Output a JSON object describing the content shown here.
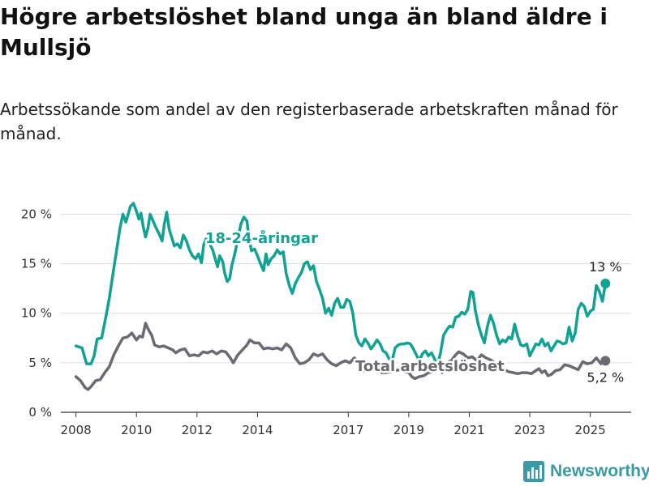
{
  "title": "Högre arbetslöshet bland unga än bland äldre i Mullsjö",
  "subtitle": "Arbetssökande som andel av den registerbaserade arbetskraften månad för månad.",
  "brand": {
    "name": "Newsworthy",
    "icon": "bar-chart-logo-icon",
    "color": "#3a9aa5"
  },
  "chart_data": {
    "type": "line",
    "x_ticks": [
      "2008",
      "2010",
      "2012",
      "2014",
      "2017",
      "2019",
      "2021",
      "2023",
      "2025"
    ],
    "y_ticks": [
      "0 %",
      "5 %",
      "10 %",
      "15 %",
      "20 %"
    ],
    "ylim": [
      0,
      22
    ],
    "grid": true,
    "legend": "direct labels on lines",
    "series": [
      {
        "name": "18-24-åringar",
        "color": "#11a294",
        "end_label": "13 %",
        "points": [
          [
            2008.0,
            6.7
          ],
          [
            2008.2,
            6.5
          ],
          [
            2008.35,
            4.9
          ],
          [
            2008.5,
            4.9
          ],
          [
            2008.6,
            5.7
          ],
          [
            2008.7,
            7.4
          ],
          [
            2008.85,
            7.5
          ],
          [
            2009.0,
            9.8
          ],
          [
            2009.1,
            11.5
          ],
          [
            2009.2,
            13.5
          ],
          [
            2009.3,
            15.5
          ],
          [
            2009.45,
            18.5
          ],
          [
            2009.55,
            20.0
          ],
          [
            2009.65,
            19.2
          ],
          [
            2009.8,
            20.8
          ],
          [
            2009.9,
            21.1
          ],
          [
            2010.0,
            20.3
          ],
          [
            2010.08,
            19.5
          ],
          [
            2010.15,
            20.1
          ],
          [
            2010.22,
            18.8
          ],
          [
            2010.3,
            17.7
          ],
          [
            2010.38,
            18.6
          ],
          [
            2010.45,
            20.0
          ],
          [
            2010.55,
            19.3
          ],
          [
            2010.65,
            18.6
          ],
          [
            2010.75,
            18.0
          ],
          [
            2010.85,
            17.3
          ],
          [
            2010.92,
            19.0
          ],
          [
            2011.0,
            20.2
          ],
          [
            2011.08,
            18.5
          ],
          [
            2011.15,
            17.8
          ],
          [
            2011.25,
            16.8
          ],
          [
            2011.35,
            17.0
          ],
          [
            2011.45,
            16.6
          ],
          [
            2011.55,
            17.9
          ],
          [
            2011.65,
            17.3
          ],
          [
            2011.75,
            16.4
          ],
          [
            2011.85,
            15.8
          ],
          [
            2011.95,
            15.5
          ],
          [
            2012.05,
            16.0
          ],
          [
            2012.15,
            15.1
          ],
          [
            2012.22,
            16.9
          ],
          [
            2012.3,
            17.5
          ],
          [
            2012.42,
            17.0
          ],
          [
            2012.52,
            16.4
          ],
          [
            2012.6,
            15.5
          ],
          [
            2012.68,
            14.7
          ],
          [
            2012.75,
            15.8
          ],
          [
            2012.85,
            15.2
          ],
          [
            2012.92,
            14.0
          ],
          [
            2013.0,
            13.2
          ],
          [
            2013.08,
            13.5
          ],
          [
            2013.15,
            14.8
          ],
          [
            2013.25,
            16.0
          ],
          [
            2013.35,
            17.5
          ],
          [
            2013.45,
            19.0
          ],
          [
            2013.55,
            19.7
          ],
          [
            2013.65,
            19.3
          ],
          [
            2013.72,
            17.5
          ],
          [
            2013.8,
            16.3
          ],
          [
            2013.9,
            16.5
          ],
          [
            2014.0,
            15.8
          ],
          [
            2014.1,
            15.0
          ],
          [
            2014.2,
            14.3
          ],
          [
            2014.28,
            16.0
          ],
          [
            2014.35,
            14.9
          ],
          [
            2014.45,
            15.5
          ],
          [
            2014.55,
            15.8
          ],
          [
            2014.65,
            16.4
          ],
          [
            2014.75,
            16.0
          ],
          [
            2014.85,
            16.2
          ],
          [
            2014.95,
            14.0
          ],
          [
            2015.05,
            12.8
          ],
          [
            2015.15,
            12.0
          ],
          [
            2015.25,
            13.0
          ],
          [
            2015.35,
            13.6
          ],
          [
            2015.45,
            14.1
          ],
          [
            2015.55,
            15.0
          ],
          [
            2015.65,
            15.2
          ],
          [
            2015.75,
            14.4
          ],
          [
            2015.85,
            14.8
          ],
          [
            2015.95,
            13.2
          ],
          [
            2016.05,
            12.4
          ],
          [
            2016.15,
            11.5
          ],
          [
            2016.25,
            10.0
          ],
          [
            2016.35,
            10.5
          ],
          [
            2016.45,
            9.8
          ],
          [
            2016.55,
            11.0
          ],
          [
            2016.65,
            11.5
          ],
          [
            2016.75,
            10.6
          ],
          [
            2016.85,
            10.6
          ],
          [
            2016.95,
            11.4
          ],
          [
            2017.05,
            11.2
          ],
          [
            2017.15,
            10.0
          ],
          [
            2017.25,
            7.8
          ],
          [
            2017.35,
            7.0
          ],
          [
            2017.45,
            6.7
          ],
          [
            2017.55,
            7.4
          ],
          [
            2017.65,
            7.0
          ],
          [
            2017.75,
            6.4
          ],
          [
            2017.85,
            6.8
          ],
          [
            2017.95,
            7.3
          ],
          [
            2018.05,
            6.9
          ],
          [
            2018.15,
            6.2
          ],
          [
            2018.25,
            6.0
          ],
          [
            2018.35,
            5.4
          ],
          [
            2018.45,
            5.2
          ],
          [
            2018.55,
            6.5
          ],
          [
            2018.65,
            6.8
          ],
          [
            2018.75,
            6.9
          ],
          [
            2018.85,
            6.9
          ],
          [
            2018.95,
            7.0
          ],
          [
            2019.05,
            6.9
          ],
          [
            2019.15,
            6.4
          ],
          [
            2019.25,
            5.8
          ],
          [
            2019.35,
            5.2
          ],
          [
            2019.45,
            5.9
          ],
          [
            2019.55,
            6.2
          ],
          [
            2019.65,
            5.7
          ],
          [
            2019.75,
            6.0
          ],
          [
            2019.85,
            5.4
          ],
          [
            2019.95,
            4.7
          ],
          [
            2020.05,
            6.0
          ],
          [
            2020.15,
            7.8
          ],
          [
            2020.25,
            8.3
          ],
          [
            2020.35,
            8.7
          ],
          [
            2020.45,
            8.6
          ],
          [
            2020.55,
            9.6
          ],
          [
            2020.65,
            9.7
          ],
          [
            2020.75,
            10.1
          ],
          [
            2020.85,
            9.9
          ],
          [
            2020.95,
            10.4
          ],
          [
            2021.05,
            12.2
          ],
          [
            2021.12,
            12.1
          ],
          [
            2021.2,
            10.3
          ],
          [
            2021.3,
            8.8
          ],
          [
            2021.4,
            7.8
          ],
          [
            2021.5,
            7.0
          ],
          [
            2021.6,
            8.7
          ],
          [
            2021.7,
            9.8
          ],
          [
            2021.8,
            9.0
          ],
          [
            2021.9,
            7.8
          ],
          [
            2022.0,
            6.9
          ],
          [
            2022.1,
            7.3
          ],
          [
            2022.2,
            7.1
          ],
          [
            2022.3,
            7.6
          ],
          [
            2022.4,
            7.4
          ],
          [
            2022.5,
            8.9
          ],
          [
            2022.6,
            7.7
          ],
          [
            2022.7,
            6.8
          ],
          [
            2022.8,
            6.7
          ],
          [
            2022.9,
            6.9
          ],
          [
            2023.0,
            5.7
          ],
          [
            2023.1,
            6.3
          ],
          [
            2023.2,
            6.9
          ],
          [
            2023.3,
            6.8
          ],
          [
            2023.4,
            7.4
          ],
          [
            2023.5,
            6.7
          ],
          [
            2023.6,
            7.0
          ],
          [
            2023.7,
            6.2
          ],
          [
            2023.8,
            6.7
          ],
          [
            2023.9,
            7.2
          ],
          [
            2024.0,
            7.1
          ],
          [
            2024.1,
            6.9
          ],
          [
            2024.2,
            7.0
          ],
          [
            2024.3,
            8.6
          ],
          [
            2024.4,
            7.2
          ],
          [
            2024.5,
            8.0
          ],
          [
            2024.6,
            10.4
          ],
          [
            2024.7,
            11.0
          ],
          [
            2024.8,
            10.7
          ],
          [
            2024.9,
            9.7
          ],
          [
            2025.0,
            10.2
          ],
          [
            2025.1,
            10.4
          ],
          [
            2025.2,
            12.8
          ],
          [
            2025.3,
            12.2
          ],
          [
            2025.4,
            11.2
          ],
          [
            2025.5,
            13.0
          ]
        ]
      },
      {
        "name": "Total arbetslöshet",
        "color": "#6b6a72",
        "end_label": "5,2 %",
        "points": [
          [
            2008.0,
            3.6
          ],
          [
            2008.15,
            3.2
          ],
          [
            2008.3,
            2.5
          ],
          [
            2008.4,
            2.3
          ],
          [
            2008.5,
            2.6
          ],
          [
            2008.65,
            3.2
          ],
          [
            2008.8,
            3.3
          ],
          [
            2008.95,
            4.0
          ],
          [
            2009.1,
            4.6
          ],
          [
            2009.25,
            5.8
          ],
          [
            2009.4,
            6.7
          ],
          [
            2009.55,
            7.5
          ],
          [
            2009.7,
            7.6
          ],
          [
            2009.85,
            8.0
          ],
          [
            2010.0,
            7.3
          ],
          [
            2010.1,
            7.7
          ],
          [
            2010.2,
            7.6
          ],
          [
            2010.3,
            9.0
          ],
          [
            2010.4,
            8.3
          ],
          [
            2010.5,
            7.8
          ],
          [
            2010.6,
            6.8
          ],
          [
            2010.75,
            6.6
          ],
          [
            2010.9,
            6.7
          ],
          [
            2011.05,
            6.5
          ],
          [
            2011.2,
            6.3
          ],
          [
            2011.3,
            6.0
          ],
          [
            2011.45,
            6.3
          ],
          [
            2011.6,
            6.4
          ],
          [
            2011.75,
            5.7
          ],
          [
            2011.9,
            5.8
          ],
          [
            2012.05,
            5.7
          ],
          [
            2012.2,
            6.1
          ],
          [
            2012.35,
            6.0
          ],
          [
            2012.5,
            6.2
          ],
          [
            2012.65,
            5.9
          ],
          [
            2012.8,
            6.2
          ],
          [
            2012.95,
            6.1
          ],
          [
            2013.1,
            5.5
          ],
          [
            2013.2,
            5.0
          ],
          [
            2013.35,
            5.8
          ],
          [
            2013.5,
            6.3
          ],
          [
            2013.65,
            6.8
          ],
          [
            2013.75,
            7.3
          ],
          [
            2013.9,
            7.0
          ],
          [
            2014.05,
            7.0
          ],
          [
            2014.2,
            6.4
          ],
          [
            2014.35,
            6.5
          ],
          [
            2014.5,
            6.4
          ],
          [
            2014.65,
            6.5
          ],
          [
            2014.8,
            6.3
          ],
          [
            2014.95,
            6.9
          ],
          [
            2015.1,
            6.5
          ],
          [
            2015.25,
            5.5
          ],
          [
            2015.4,
            4.9
          ],
          [
            2015.55,
            5.0
          ],
          [
            2015.7,
            5.3
          ],
          [
            2015.85,
            5.9
          ],
          [
            2016.0,
            5.7
          ],
          [
            2016.15,
            5.9
          ],
          [
            2016.3,
            5.3
          ],
          [
            2016.45,
            4.9
          ],
          [
            2016.6,
            4.7
          ],
          [
            2016.75,
            5.0
          ],
          [
            2016.9,
            5.2
          ],
          [
            2017.05,
            5.0
          ],
          [
            2017.2,
            5.5
          ],
          [
            2017.35,
            5.0
          ],
          [
            2017.5,
            4.2
          ],
          [
            2017.65,
            4.1
          ],
          [
            2017.8,
            4.4
          ],
          [
            2017.95,
            4.5
          ],
          [
            2018.1,
            4.0
          ],
          [
            2018.25,
            4.0
          ],
          [
            2018.4,
            4.1
          ],
          [
            2018.55,
            4.2
          ],
          [
            2018.7,
            4.3
          ],
          [
            2018.85,
            4.1
          ],
          [
            2019.0,
            4.0
          ],
          [
            2019.1,
            3.6
          ],
          [
            2019.2,
            3.4
          ],
          [
            2019.35,
            3.6
          ],
          [
            2019.5,
            3.7
          ],
          [
            2019.65,
            4.0
          ],
          [
            2019.8,
            4.1
          ],
          [
            2019.95,
            4.4
          ],
          [
            2020.1,
            4.0
          ],
          [
            2020.25,
            5.0
          ],
          [
            2020.4,
            5.2
          ],
          [
            2020.55,
            5.8
          ],
          [
            2020.65,
            6.1
          ],
          [
            2020.8,
            5.9
          ],
          [
            2020.95,
            5.5
          ],
          [
            2021.1,
            5.6
          ],
          [
            2021.25,
            5.2
          ],
          [
            2021.4,
            5.8
          ],
          [
            2021.55,
            5.5
          ],
          [
            2021.7,
            5.3
          ],
          [
            2021.85,
            5.0
          ],
          [
            2022.0,
            4.6
          ],
          [
            2022.15,
            4.3
          ],
          [
            2022.3,
            4.1
          ],
          [
            2022.45,
            4.0
          ],
          [
            2022.6,
            3.9
          ],
          [
            2022.75,
            4.0
          ],
          [
            2022.9,
            4.0
          ],
          [
            2023.05,
            3.9
          ],
          [
            2023.2,
            4.2
          ],
          [
            2023.3,
            4.4
          ],
          [
            2023.4,
            4.0
          ],
          [
            2023.5,
            4.2
          ],
          [
            2023.6,
            3.7
          ],
          [
            2023.7,
            3.8
          ],
          [
            2023.85,
            4.2
          ],
          [
            2024.0,
            4.3
          ],
          [
            2024.15,
            4.8
          ],
          [
            2024.3,
            4.7
          ],
          [
            2024.45,
            4.5
          ],
          [
            2024.6,
            4.3
          ],
          [
            2024.75,
            5.1
          ],
          [
            2024.9,
            4.9
          ],
          [
            2025.05,
            5.0
          ],
          [
            2025.2,
            5.5
          ],
          [
            2025.35,
            4.9
          ],
          [
            2025.5,
            5.2
          ]
        ]
      }
    ]
  }
}
